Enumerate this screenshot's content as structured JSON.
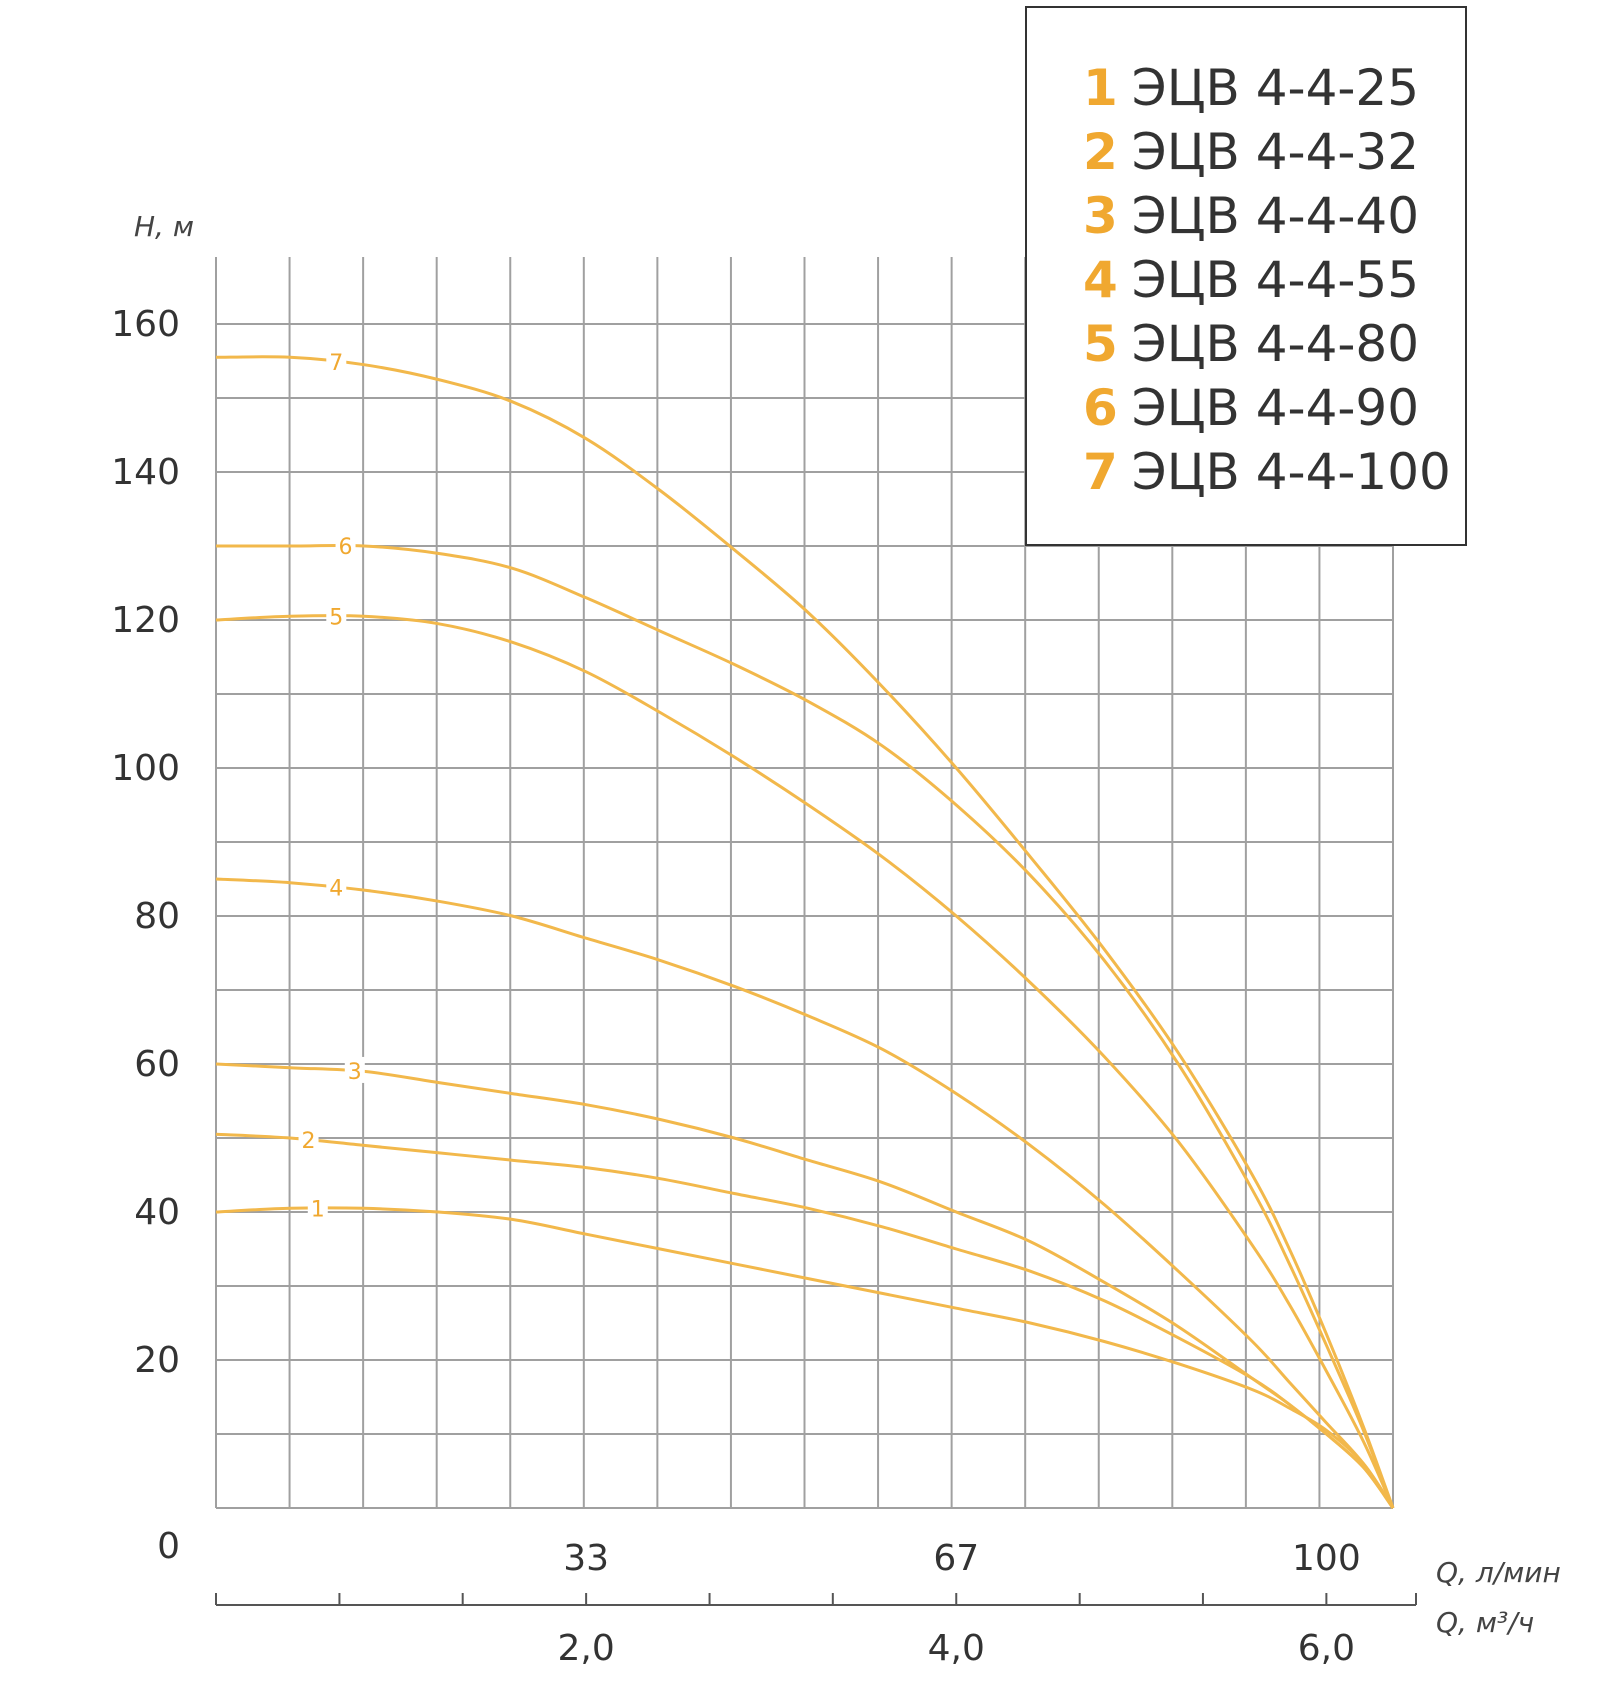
{
  "chart_data": {
    "type": "line",
    "title": "",
    "ylabel": "H, м",
    "xlabel": "Q, л/мин",
    "xlabel_secondary": "Q, м³/ч",
    "ylim": [
      0,
      170
    ],
    "xlim": [
      0,
      6.36
    ],
    "y_ticks": [
      "0",
      "20",
      "40",
      "60",
      "80",
      "100",
      "120",
      "140",
      "160"
    ],
    "x_ticks_top": [
      {
        "value": 2.0,
        "label": "33"
      },
      {
        "value": 4.0,
        "label": "67"
      },
      {
        "value": 6.0,
        "label": "100"
      }
    ],
    "x_ticks_bottom": [
      {
        "value": 2.0,
        "label": "2,0"
      },
      {
        "value": 4.0,
        "label": "4,0"
      },
      {
        "value": 6.0,
        "label": "6,0"
      }
    ],
    "grid": true,
    "legend_position": "top-right",
    "series": [
      {
        "name": "ЭЦВ 4-4-25",
        "label": "1",
        "x": [
          0,
          0.4,
          0.8,
          1.2,
          1.6,
          2.0,
          2.4,
          2.8,
          3.2,
          3.6,
          4.0,
          4.4,
          4.8,
          5.2,
          5.6,
          5.8,
          6.0,
          6.2,
          6.36
        ],
        "y": [
          40,
          40.5,
          40.5,
          40,
          39,
          37,
          35,
          33,
          31,
          29,
          27,
          25,
          22.5,
          19.5,
          16,
          13.5,
          10.5,
          6,
          0
        ]
      },
      {
        "name": "ЭЦВ 4-4-32",
        "label": "2",
        "x": [
          0,
          0.4,
          0.8,
          1.2,
          1.6,
          2.0,
          2.4,
          2.8,
          3.2,
          3.6,
          4.0,
          4.4,
          4.8,
          5.2,
          5.6,
          5.8,
          6.0,
          6.2,
          6.36
        ],
        "y": [
          50.5,
          50,
          49,
          48,
          47,
          46,
          44.5,
          42.5,
          40.5,
          38,
          35,
          32,
          28,
          23,
          17.5,
          14,
          10,
          5.5,
          0
        ]
      },
      {
        "name": "ЭЦВ 4-4-40",
        "label": "3",
        "x": [
          0,
          0.4,
          0.8,
          1.2,
          1.6,
          2.0,
          2.4,
          2.8,
          3.2,
          3.6,
          4.0,
          4.4,
          4.8,
          5.2,
          5.6,
          5.8,
          6.0,
          6.2,
          6.36
        ],
        "y": [
          60,
          59.5,
          59,
          57.5,
          56,
          54.5,
          52.5,
          50,
          47,
          44,
          40,
          36,
          30.5,
          24.5,
          17.5,
          14,
          10,
          5.5,
          0
        ]
      },
      {
        "name": "ЭЦВ 4-4-55",
        "label": "4",
        "x": [
          0,
          0.4,
          0.8,
          1.2,
          1.6,
          2.0,
          2.4,
          2.8,
          3.2,
          3.6,
          4.0,
          4.4,
          4.8,
          5.2,
          5.6,
          5.8,
          6.0,
          6.2,
          6.36
        ],
        "y": [
          85,
          84.5,
          83.5,
          82,
          80,
          77,
          74,
          70.5,
          66.5,
          62,
          56,
          49,
          41,
          32,
          22.5,
          17,
          11.5,
          6,
          0
        ]
      },
      {
        "name": "ЭЦВ 4-4-80",
        "label": "5",
        "x": [
          0,
          0.4,
          0.8,
          1.2,
          1.6,
          2.0,
          2.4,
          2.8,
          3.2,
          3.6,
          4.0,
          4.4,
          4.8,
          5.2,
          5.6,
          5.8,
          6.0,
          6.2,
          6.36
        ],
        "y": [
          120,
          120.5,
          120.5,
          119.5,
          117,
          113,
          107.5,
          101.5,
          95,
          88,
          80,
          71,
          61,
          49.5,
          35.5,
          27.5,
          18.5,
          9,
          0
        ]
      },
      {
        "name": "ЭЦВ 4-4-90",
        "label": "6",
        "x": [
          0,
          0.4,
          0.8,
          1.2,
          1.6,
          2.0,
          2.4,
          2.8,
          3.2,
          3.6,
          4.0,
          4.4,
          4.8,
          5.2,
          5.6,
          5.8,
          6.0,
          6.2,
          6.36
        ],
        "y": [
          130,
          130,
          130,
          129,
          127,
          123,
          118.5,
          114,
          109,
          103,
          95,
          85.5,
          74,
          60,
          43,
          33,
          22,
          10.5,
          0
        ]
      },
      {
        "name": "ЭЦВ 4-4-100",
        "label": "7",
        "x": [
          0,
          0.4,
          0.8,
          1.2,
          1.6,
          2.0,
          2.4,
          2.8,
          3.2,
          3.6,
          4.0,
          4.4,
          4.8,
          5.2,
          5.6,
          5.8,
          6.0,
          6.2,
          6.36
        ],
        "y": [
          155.5,
          155.5,
          154.5,
          152.5,
          149.5,
          144.5,
          137.5,
          129.5,
          121,
          111,
          100,
          88,
          75.5,
          61.5,
          45,
          35,
          23.5,
          11,
          0
        ]
      }
    ],
    "label_positions_x": [
      0.55,
      0.5,
      0.75,
      0.65,
      0.65,
      0.7,
      0.65
    ],
    "colors": {
      "curve": "#f2b84b",
      "label": "#f0a830",
      "grid": "#a0a0a0",
      "text": "#333333",
      "legend_border": "#333333"
    }
  }
}
